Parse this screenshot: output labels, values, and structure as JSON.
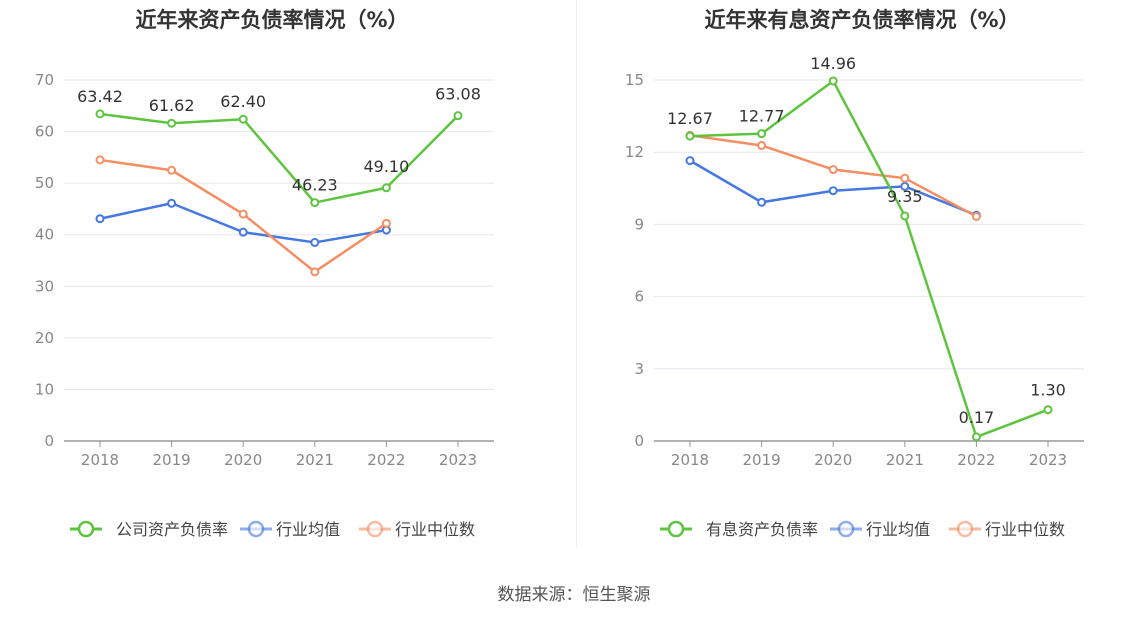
{
  "source": "数据来源：恒生聚源",
  "chart_data": [
    {
      "type": "line",
      "title": "近年来资产负债率情况（%）",
      "xlabel": "",
      "ylabel": "",
      "categories": [
        "2018",
        "2019",
        "2020",
        "2021",
        "2022",
        "2023"
      ],
      "ylim": [
        0,
        70
      ],
      "yticks": [
        0,
        10,
        20,
        30,
        40,
        50,
        60,
        70
      ],
      "grid": true,
      "legend": "bottom",
      "series": [
        {
          "name": "公司资产负债率",
          "color": "#5ec43f",
          "labeled": true,
          "values": [
            63.42,
            61.62,
            62.4,
            46.23,
            49.1,
            63.08
          ],
          "labels": [
            "63.42",
            "61.62",
            "62.40",
            "46.23",
            "49.10",
            "63.08"
          ]
        },
        {
          "name": "行业均值",
          "color": "#4578e1",
          "labeled": false,
          "values": [
            43.1,
            46.1,
            40.5,
            38.5,
            40.9,
            null
          ]
        },
        {
          "name": "行业中位数",
          "color": "#f58e62",
          "labeled": false,
          "values": [
            54.5,
            52.5,
            44.0,
            32.8,
            42.2,
            null
          ]
        }
      ]
    },
    {
      "type": "line",
      "title": "近年来有息资产负债率情况（%）",
      "xlabel": "",
      "ylabel": "",
      "categories": [
        "2018",
        "2019",
        "2020",
        "2021",
        "2022",
        "2023"
      ],
      "ylim": [
        0,
        15
      ],
      "yticks": [
        0,
        3,
        6,
        9,
        12,
        15
      ],
      "grid": true,
      "legend": "bottom",
      "series": [
        {
          "name": "有息资产负债率",
          "color": "#5ec43f",
          "labeled": true,
          "values": [
            12.67,
            12.77,
            14.96,
            9.35,
            0.17,
            1.3
          ],
          "labels": [
            "12.67",
            "12.77",
            "14.96",
            "9.35",
            "0.17",
            "1.30"
          ]
        },
        {
          "name": "行业均值",
          "color": "#4578e1",
          "labeled": false,
          "values": [
            11.65,
            9.92,
            10.4,
            10.58,
            9.38,
            null
          ]
        },
        {
          "name": "行业中位数",
          "color": "#f58e62",
          "labeled": false,
          "values": [
            12.7,
            12.28,
            11.28,
            10.92,
            9.33,
            null
          ]
        }
      ]
    }
  ]
}
